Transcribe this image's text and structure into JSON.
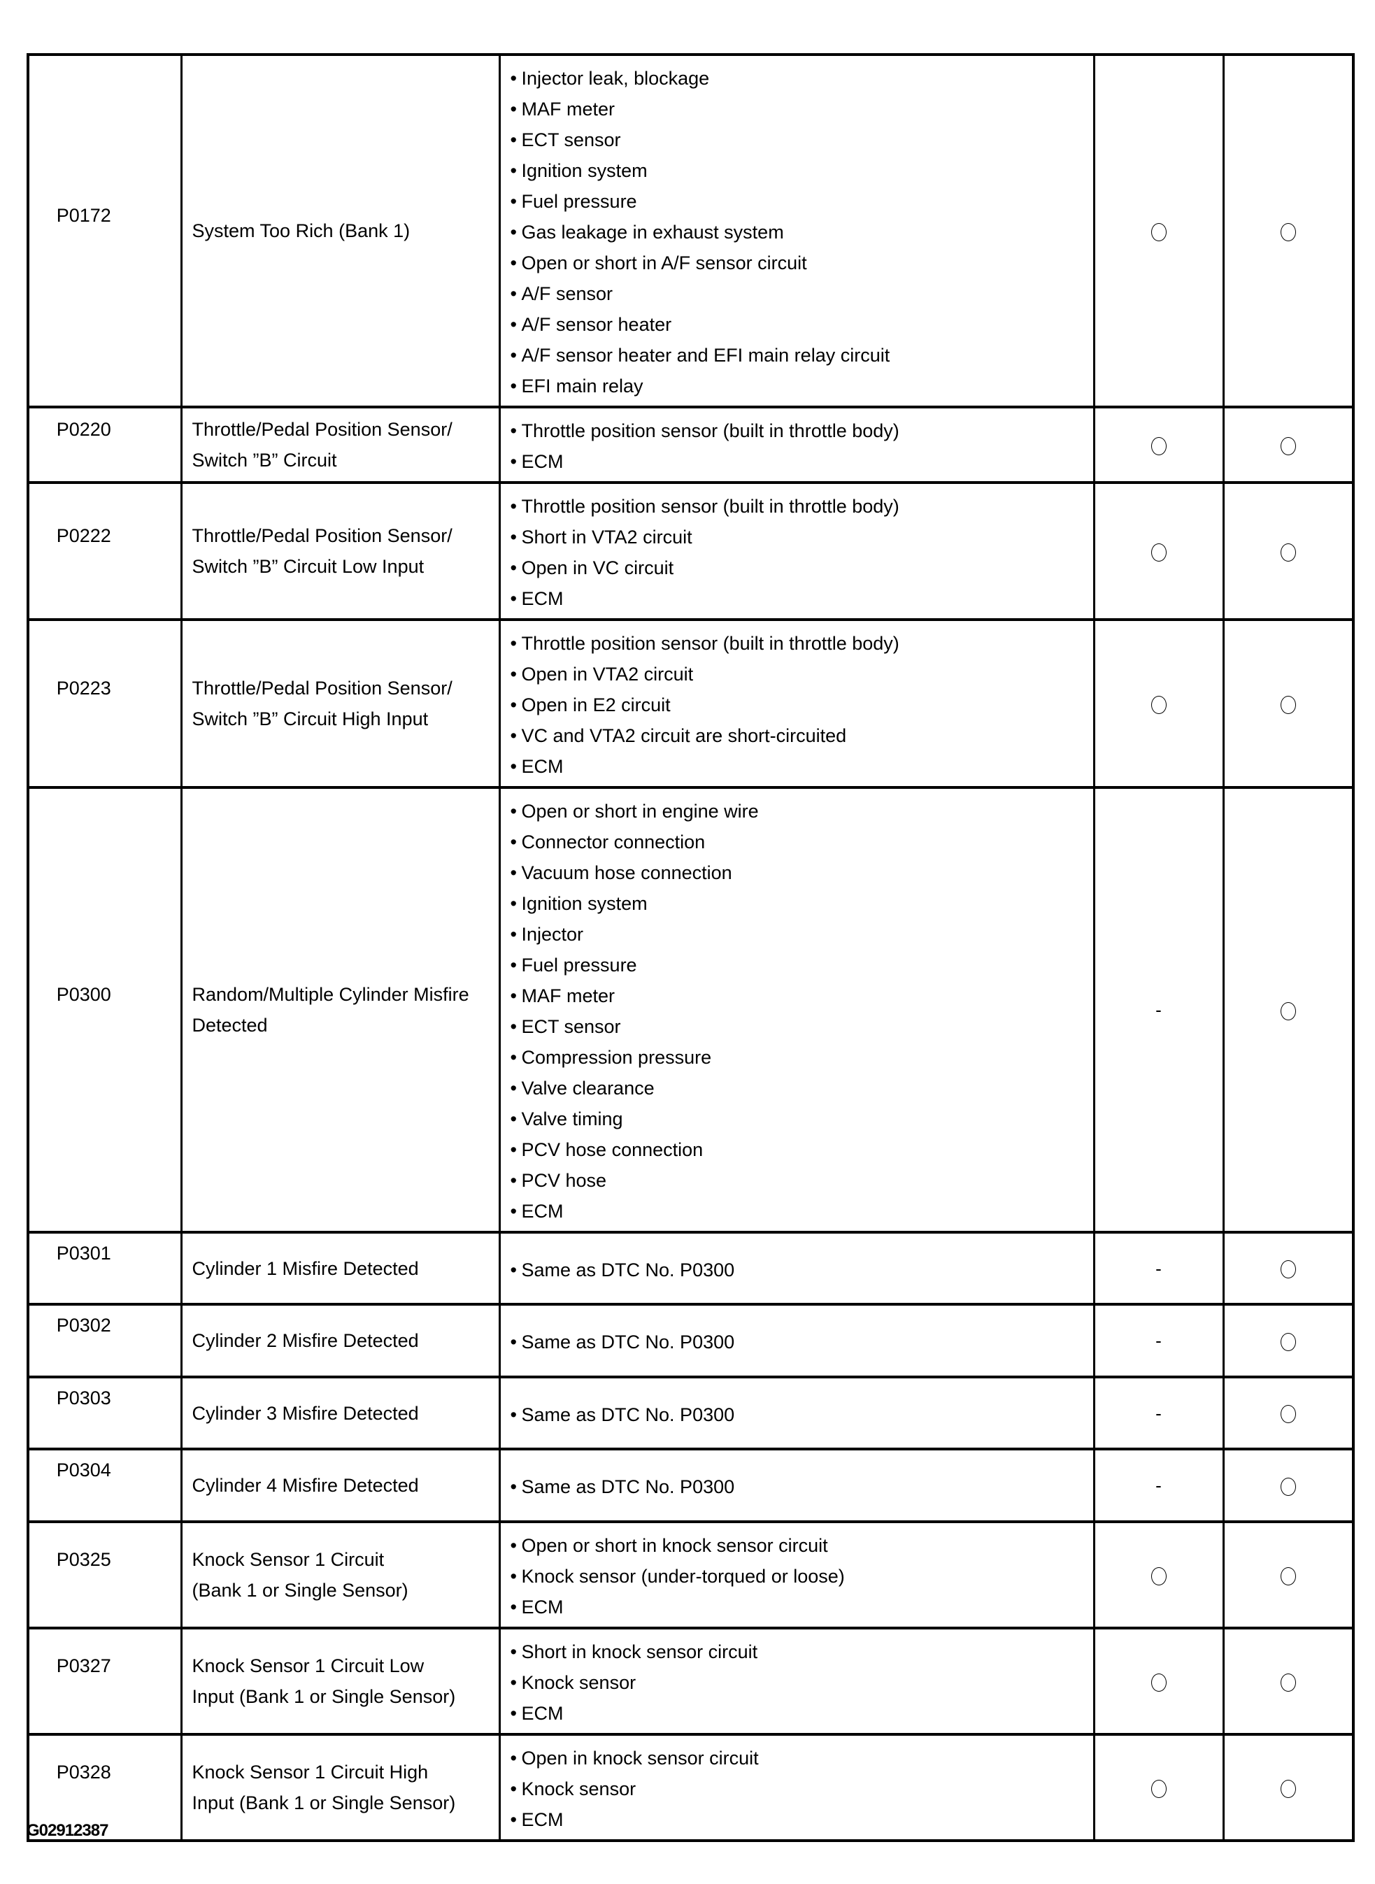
{
  "rows": [
    {
      "code": "P0172",
      "description": [
        "System Too Rich (Bank 1)"
      ],
      "causes": [
        "Injector leak, blockage",
        "MAF meter",
        "ECT sensor",
        "Ignition system",
        "Fuel pressure",
        "Gas leakage in exhaust system",
        "Open or short in A/F sensor circuit",
        "A/F sensor",
        "A/F sensor heater",
        "A/F sensor heater and EFI main relay circuit",
        "EFI main relay"
      ],
      "col4": "circle",
      "col5": "circle"
    },
    {
      "code": "P0220",
      "description": [
        "Throttle/Pedal Position Sensor/",
        "Switch ”B” Circuit"
      ],
      "causes": [
        "Throttle position sensor (built in throttle body)",
        "ECM"
      ],
      "col4": "circle",
      "col5": "circle"
    },
    {
      "code": "P0222",
      "description": [
        "Throttle/Pedal Position Sensor/",
        "Switch ”B” Circuit Low Input"
      ],
      "causes": [
        "Throttle position sensor (built in throttle body)",
        "Short in VTA2 circuit",
        "Open in VC circuit",
        "ECM"
      ],
      "col4": "circle",
      "col5": "circle"
    },
    {
      "code": "P0223",
      "description": [
        "Throttle/Pedal Position Sensor/",
        "Switch ”B” Circuit High Input"
      ],
      "causes": [
        "Throttle position sensor (built in throttle body)",
        "Open in VTA2 circuit",
        "Open in E2 circuit",
        "VC and VTA2 circuit are short-circuited",
        "ECM"
      ],
      "col4": "circle",
      "col5": "circle"
    },
    {
      "code": "P0300",
      "description": [
        "Random/Multiple Cylinder Misfire",
        "Detected"
      ],
      "causes": [
        "Open or short in engine wire",
        "Connector connection",
        "Vacuum hose connection",
        "Ignition system",
        "Injector",
        "Fuel pressure",
        "MAF meter",
        "ECT sensor",
        "Compression pressure",
        "Valve clearance",
        "Valve timing",
        "PCV hose connection",
        "PCV hose",
        "ECM"
      ],
      "col4": "-",
      "col5": "circle"
    },
    {
      "code": "P0301",
      "description": [
        "Cylinder 1 Misfire Detected"
      ],
      "causes": [
        "Same as DTC No. P0300"
      ],
      "col4": "-",
      "col5": "circle"
    },
    {
      "code": "P0302",
      "description": [
        "Cylinder 2 Misfire Detected"
      ],
      "causes": [
        "Same as DTC No. P0300"
      ],
      "col4": "-",
      "col5": "circle"
    },
    {
      "code": "P0303",
      "description": [
        "Cylinder 3 Misfire Detected"
      ],
      "causes": [
        "Same as DTC No. P0300"
      ],
      "col4": "-",
      "col5": "circle"
    },
    {
      "code": "P0304",
      "description": [
        "Cylinder 4 Misfire Detected"
      ],
      "causes": [
        "Same as DTC No. P0300"
      ],
      "col4": "-",
      "col5": "circle"
    },
    {
      "code": "P0325",
      "description": [
        "Knock Sensor 1 Circuit",
        "(Bank 1 or Single Sensor)"
      ],
      "causes": [
        "Open or short in knock sensor circuit",
        "Knock sensor (under-torqued or loose)",
        "ECM"
      ],
      "col4": "circle",
      "col5": "circle"
    },
    {
      "code": "P0327",
      "description": [
        "Knock Sensor 1 Circuit Low",
        "Input (Bank 1 or Single Sensor)"
      ],
      "causes": [
        "Short in knock sensor circuit",
        "Knock sensor",
        "ECM"
      ],
      "col4": "circle",
      "col5": "circle"
    },
    {
      "code": "P0328",
      "description": [
        "Knock Sensor 1 Circuit High",
        "Input (Bank 1 or Single Sensor)"
      ],
      "causes": [
        "Open in knock sensor circuit",
        "Knock sensor",
        "ECM"
      ],
      "col4": "circle",
      "col5": "circle"
    }
  ],
  "bullet": "•",
  "figure_id": "G02912387"
}
